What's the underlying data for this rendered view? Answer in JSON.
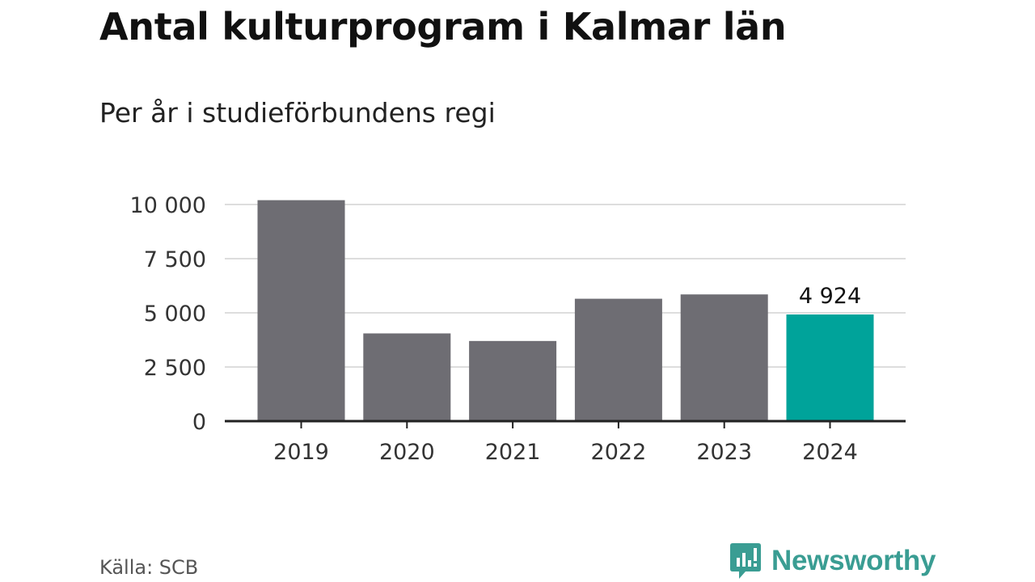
{
  "title": "Antal kulturprogram i Kalmar län",
  "subtitle": "Per år i studieförbundens regi",
  "source": "Källa: SCB",
  "brand": "Newsworthy",
  "colors": {
    "bar": "#6e6d73",
    "highlight": "#00a39a",
    "grid": "#dddddd",
    "axis": "#222222",
    "brand": "#3a9d93"
  },
  "chart_data": {
    "type": "bar",
    "categories": [
      "2019",
      "2020",
      "2021",
      "2022",
      "2023",
      "2024"
    ],
    "values": [
      10200,
      4050,
      3700,
      5650,
      5850,
      4924
    ],
    "highlight_index": 5,
    "data_labels": [
      {
        "index": 5,
        "text": "4 924"
      }
    ],
    "ylim": [
      0,
      10000
    ],
    "yticks": [
      0,
      2500,
      5000,
      7500,
      10000
    ],
    "ytick_labels": [
      "0",
      "2 500",
      "5 000",
      "7 500",
      "10 000"
    ],
    "grid": true,
    "xlabel": "",
    "ylabel": ""
  }
}
